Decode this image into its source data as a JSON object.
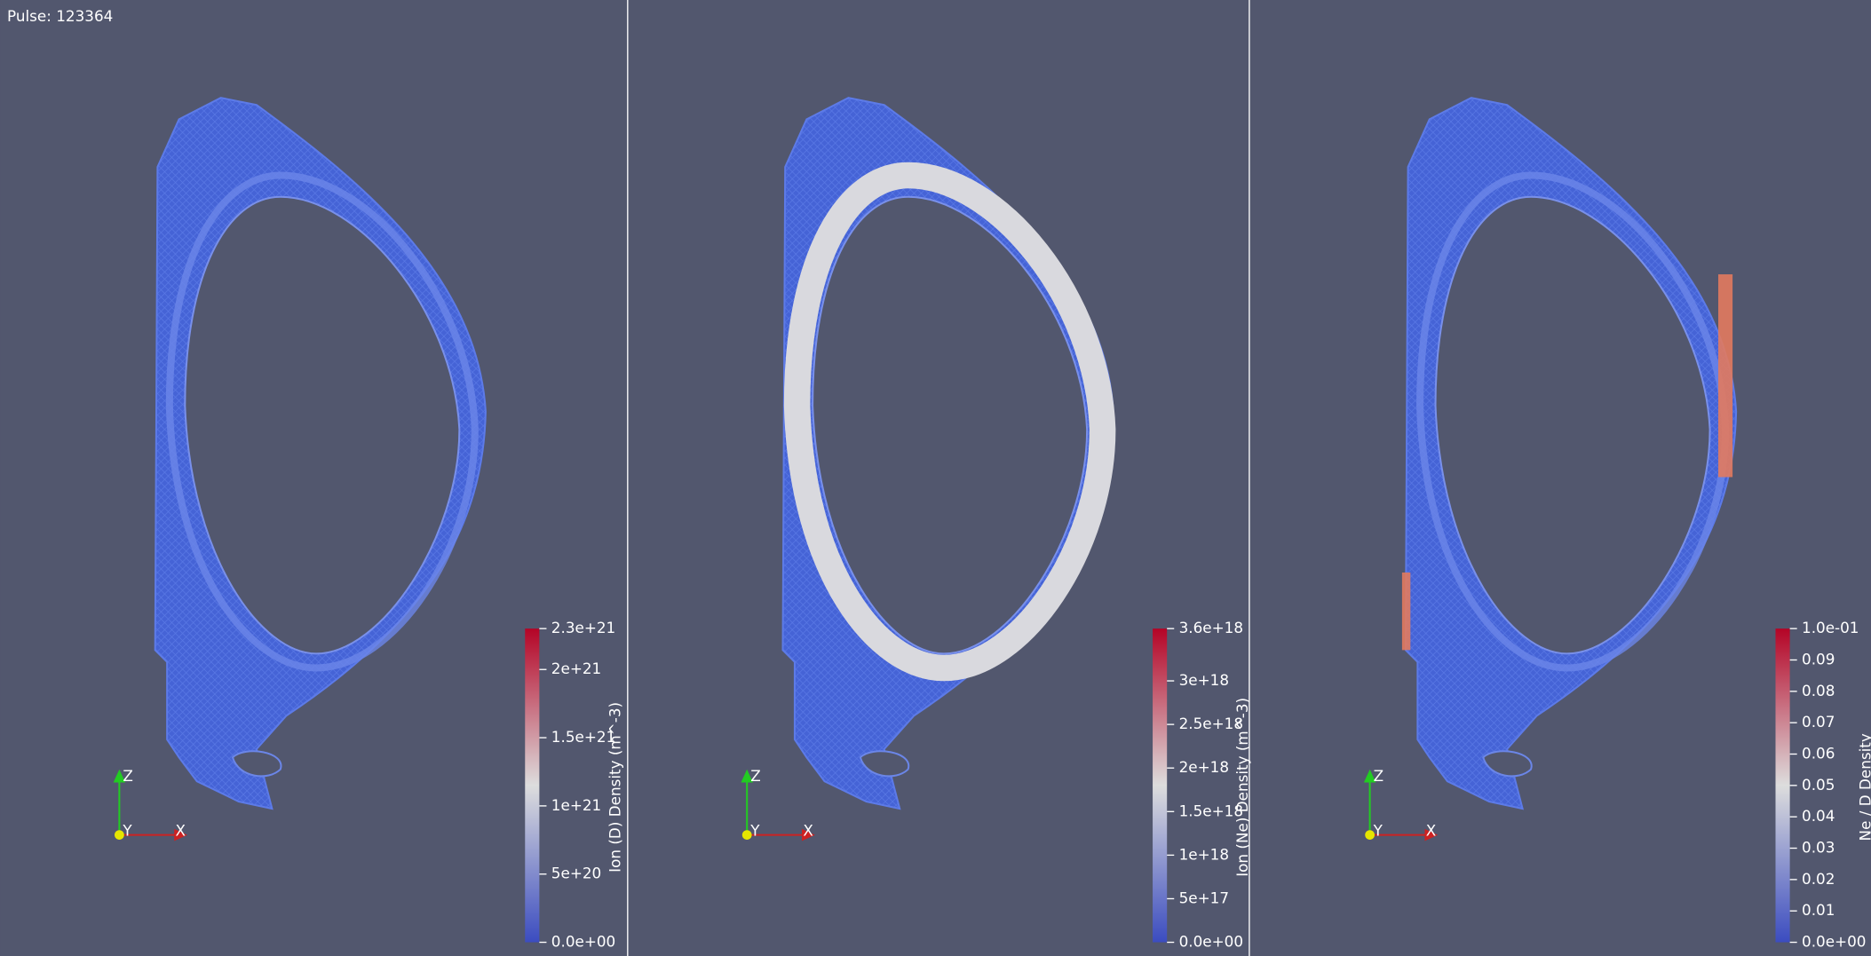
{
  "header": {
    "pulse": "Pulse: 123364"
  },
  "panels": [
    {
      "colorbar": {
        "title": "Ion (D) Density (m^-3)",
        "ticks": [
          "2.3e+21",
          "2e+21",
          "1.5e+21",
          "1e+21",
          "5e+20",
          "0.0e+00"
        ]
      },
      "axes": {
        "z": "Z",
        "y": "Y",
        "x": "X"
      }
    },
    {
      "colorbar": {
        "title": "Ion (Ne) Density (m^-3)",
        "ticks": [
          "3.6e+18",
          "3e+18",
          "2.5e+18",
          "2e+18",
          "1.5e+18",
          "1e+18",
          "5e+17",
          "0.0e+00"
        ]
      },
      "axes": {
        "z": "Z",
        "y": "Y",
        "x": "X"
      }
    },
    {
      "colorbar": {
        "title": "Ne / D Density",
        "ticks": [
          "1.0e-01",
          "0.09",
          "0.08",
          "0.07",
          "0.06",
          "0.05",
          "0.04",
          "0.03",
          "0.02",
          "0.01",
          "0.0e+00"
        ]
      },
      "axes": {
        "z": "Z",
        "y": "Y",
        "x": "X"
      }
    }
  ]
}
